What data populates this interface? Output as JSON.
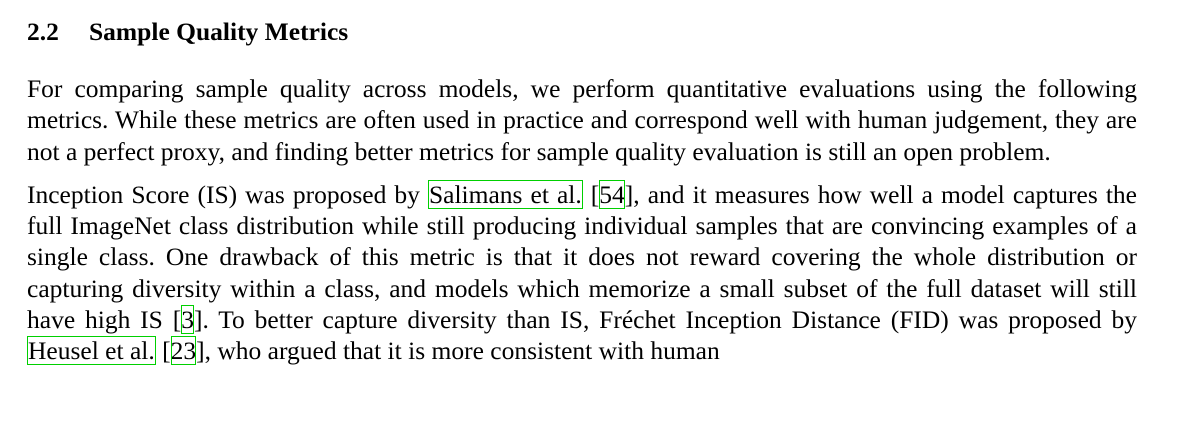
{
  "section": {
    "number": "2.2",
    "title": "Sample Quality Metrics"
  },
  "paragraph1": {
    "text": "For comparing sample quality across models, we perform quantitative evaluations using the following metrics. While these metrics are often used in practice and correspond well with human judgement, they are not a perfect proxy, and finding better metrics for sample quality evaluation is still an open problem."
  },
  "paragraph2": {
    "t1": "Inception Score (IS) was proposed by ",
    "author1": "Salimans et al.",
    "t2": " [",
    "ref1": "54",
    "t3": "], and it measures how well a model captures the full ImageNet class distribution while still producing individual samples that are convincing examples of a single class. One drawback of this metric is that it does not reward covering the whole distribution or capturing diversity within a class, and models which memorize a small subset of the full dataset will still have high IS [",
    "ref2": "3",
    "t4": "]. To better capture diversity than IS, Fréchet Inception Distance (FID) was proposed by ",
    "author2": "Heusel et al.",
    "t5": " [",
    "ref3": "23",
    "t6": "], who argued that it is more consistent with human"
  },
  "colors": {
    "citation_box": "#00d000",
    "text": "#000000",
    "background": "#ffffff"
  }
}
